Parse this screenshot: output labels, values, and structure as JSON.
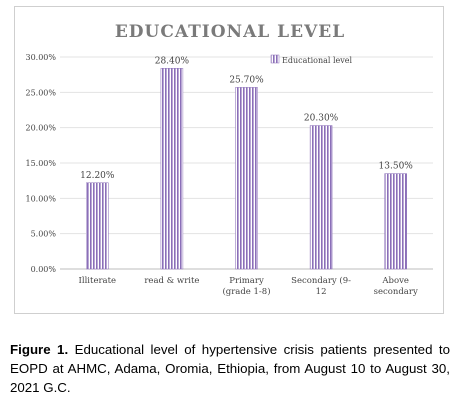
{
  "caption": {
    "label": "Figure 1.",
    "text": " Educational level of hypertensive crisis patients presented to EOPD at AHMC, Adama, Oromia, Ethiopia, from August 10 to August 30, 2021 G.C."
  },
  "chart_data": {
    "type": "bar",
    "title": "EDUCATIONAL LEVEL",
    "xlabel": "",
    "ylabel": "",
    "categories": [
      [
        "Illiterate"
      ],
      [
        "read & write"
      ],
      [
        "Primary",
        "(grade 1-8)"
      ],
      [
        "Secondary (9-",
        "12"
      ],
      [
        "Above",
        "secondary"
      ]
    ],
    "series": [
      {
        "name": "Educational level",
        "values": [
          12.2,
          28.4,
          25.7,
          20.3,
          13.5
        ],
        "labels": [
          "12.20%",
          "28.40%",
          "25.70%",
          "20.30%",
          "13.50%"
        ]
      }
    ],
    "ylim": [
      0,
      30
    ],
    "yticks": [
      "0.00%",
      "5.00%",
      "10.00%",
      "15.00%",
      "20.00%",
      "25.00%",
      "30.00%"
    ],
    "grid": true,
    "legend_position": "top-right",
    "colors": {
      "bar_fill": "#ffffff",
      "bar_stripe": "#8b6fb8",
      "title": "#7a7a7a",
      "axis_text": "#444444",
      "grid": "#e3e3e3"
    }
  }
}
